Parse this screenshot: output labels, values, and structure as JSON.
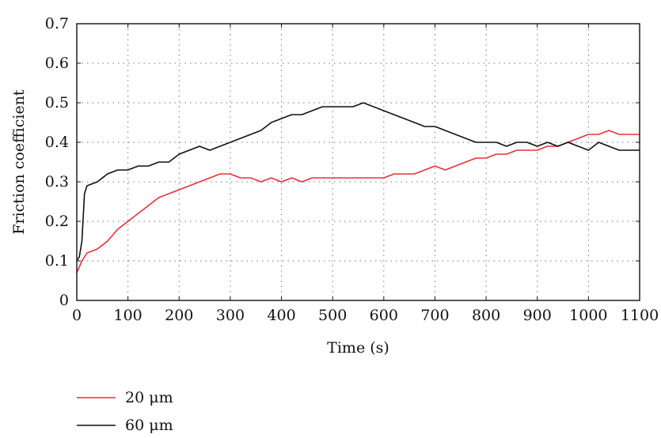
{
  "chart_data": {
    "type": "line",
    "xlabel": "Time (s)",
    "ylabel": "Friction coefficient",
    "xlim": [
      0,
      1100
    ],
    "ylim": [
      0,
      0.7
    ],
    "xticks": [
      0,
      100,
      200,
      300,
      400,
      500,
      600,
      700,
      800,
      900,
      1000,
      1100
    ],
    "yticks": [
      0,
      0.1,
      0.2,
      0.3,
      0.4,
      0.5,
      0.6,
      0.7
    ],
    "xtick_labels": [
      "0",
      "100",
      "200",
      "300",
      "400",
      "500",
      "600",
      "700",
      "800",
      "900",
      "1000",
      "1100"
    ],
    "ytick_labels": [
      "0",
      "0.1",
      "0.2",
      "0.3",
      "0.4",
      "0.5",
      "0.6",
      "0.7"
    ],
    "grid": true,
    "legend_position": "bottom-left",
    "series": [
      {
        "name": "20 μm",
        "color": "#e8303a",
        "x": [
          0,
          10,
          20,
          40,
          60,
          80,
          100,
          120,
          140,
          160,
          180,
          200,
          220,
          240,
          260,
          280,
          300,
          320,
          340,
          360,
          380,
          400,
          420,
          440,
          460,
          480,
          500,
          520,
          540,
          560,
          580,
          600,
          620,
          640,
          660,
          680,
          700,
          720,
          740,
          760,
          780,
          800,
          820,
          840,
          860,
          880,
          900,
          920,
          940,
          960,
          980,
          1000,
          1020,
          1040,
          1060,
          1080,
          1100
        ],
        "values": [
          0.07,
          0.1,
          0.12,
          0.13,
          0.15,
          0.18,
          0.2,
          0.22,
          0.24,
          0.26,
          0.27,
          0.28,
          0.29,
          0.3,
          0.31,
          0.32,
          0.32,
          0.31,
          0.31,
          0.3,
          0.31,
          0.3,
          0.31,
          0.3,
          0.31,
          0.31,
          0.31,
          0.31,
          0.31,
          0.31,
          0.31,
          0.31,
          0.32,
          0.32,
          0.32,
          0.33,
          0.34,
          0.33,
          0.34,
          0.35,
          0.36,
          0.36,
          0.37,
          0.37,
          0.38,
          0.38,
          0.38,
          0.39,
          0.39,
          0.4,
          0.41,
          0.42,
          0.42,
          0.43,
          0.42,
          0.42,
          0.42
        ]
      },
      {
        "name": "60 μm",
        "color": "#111111",
        "x": [
          0,
          5,
          10,
          15,
          20,
          40,
          60,
          80,
          100,
          120,
          140,
          160,
          180,
          200,
          220,
          240,
          260,
          280,
          300,
          320,
          340,
          360,
          380,
          400,
          420,
          440,
          460,
          480,
          500,
          520,
          540,
          560,
          580,
          600,
          620,
          640,
          660,
          680,
          700,
          720,
          740,
          760,
          780,
          800,
          820,
          840,
          860,
          880,
          900,
          920,
          940,
          960,
          980,
          1000,
          1020,
          1040,
          1060,
          1080,
          1100
        ],
        "values": [
          0.1,
          0.11,
          0.15,
          0.27,
          0.29,
          0.3,
          0.32,
          0.33,
          0.33,
          0.34,
          0.34,
          0.35,
          0.35,
          0.37,
          0.38,
          0.39,
          0.38,
          0.39,
          0.4,
          0.41,
          0.42,
          0.43,
          0.45,
          0.46,
          0.47,
          0.47,
          0.48,
          0.49,
          0.49,
          0.49,
          0.49,
          0.5,
          0.49,
          0.48,
          0.47,
          0.46,
          0.45,
          0.44,
          0.44,
          0.43,
          0.42,
          0.41,
          0.4,
          0.4,
          0.4,
          0.39,
          0.4,
          0.4,
          0.39,
          0.4,
          0.39,
          0.4,
          0.39,
          0.38,
          0.4,
          0.39,
          0.38,
          0.38,
          0.38
        ]
      }
    ]
  }
}
